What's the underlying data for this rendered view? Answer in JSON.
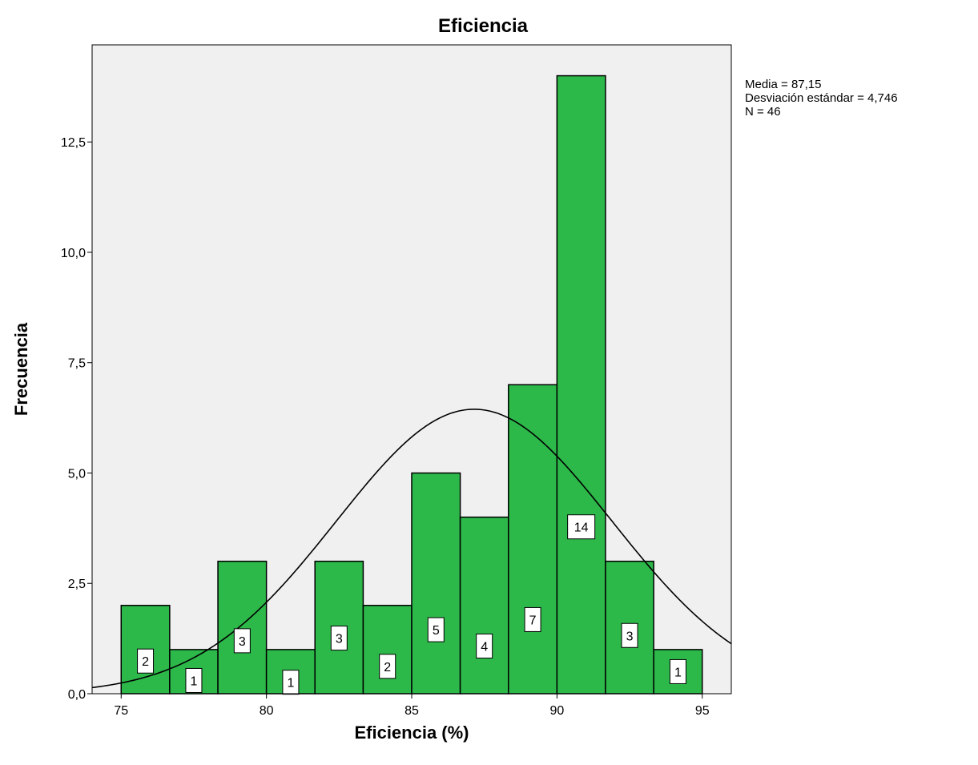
{
  "chart_data": {
    "type": "bar",
    "title": "Eficiencia",
    "xlabel": "Eficiencia (%)",
    "ylabel": "Frecuencia",
    "xlim": [
      74,
      96
    ],
    "ylim": [
      0,
      14.7
    ],
    "x_ticks": [
      75,
      80,
      85,
      90,
      95
    ],
    "y_ticks": [
      0,
      2.5,
      5,
      7.5,
      10,
      12.5
    ],
    "y_tick_labels": [
      "0,0",
      "2,5",
      "5,0",
      "7,5",
      "10,0",
      "12,5"
    ],
    "bins": [
      {
        "start": 75.0,
        "end": 76.67,
        "count": 2
      },
      {
        "start": 76.67,
        "end": 78.33,
        "count": 1
      },
      {
        "start": 78.33,
        "end": 80.0,
        "count": 3
      },
      {
        "start": 80.0,
        "end": 81.67,
        "count": 1
      },
      {
        "start": 81.67,
        "end": 83.33,
        "count": 3
      },
      {
        "start": 83.33,
        "end": 85.0,
        "count": 2
      },
      {
        "start": 85.0,
        "end": 86.67,
        "count": 5
      },
      {
        "start": 86.67,
        "end": 88.33,
        "count": 4
      },
      {
        "start": 88.33,
        "end": 90.0,
        "count": 7
      },
      {
        "start": 90.0,
        "end": 91.67,
        "count": 14
      },
      {
        "start": 91.67,
        "end": 93.33,
        "count": 3
      },
      {
        "start": 93.33,
        "end": 95.0,
        "count": 1
      }
    ],
    "data_labels": [
      "2",
      "1",
      "3",
      "1",
      "3",
      "2",
      "5",
      "4",
      "7",
      "14",
      "3",
      "1"
    ],
    "normal_curve": {
      "mean": 87.15,
      "sd": 4.746,
      "n": 46
    },
    "stats_lines": [
      "Media = 87,15",
      "Desviación estándar = 4,746",
      "N = 46"
    ],
    "grid": false,
    "colors": {
      "bar_fill": "#2db84a",
      "bar_stroke": "#000000",
      "plot_background": "#f0f0f0",
      "curve": "#000000",
      "label_box": "#ffffff"
    }
  }
}
